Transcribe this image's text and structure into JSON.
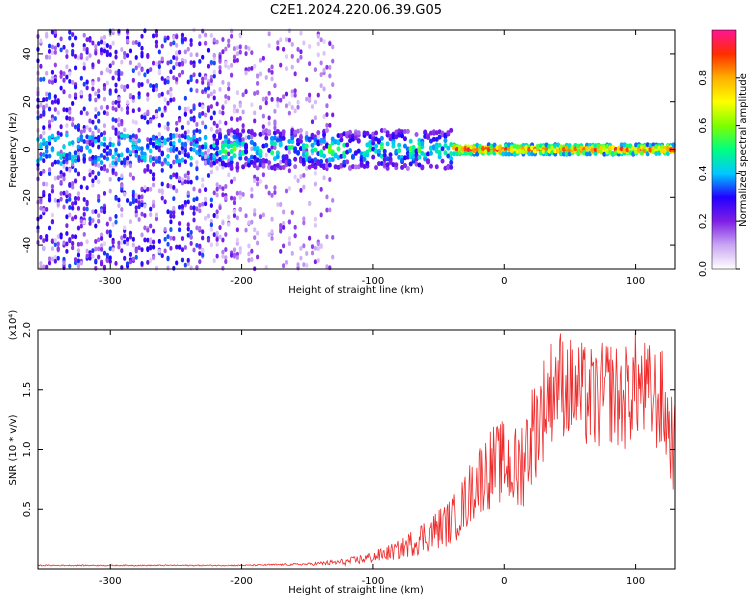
{
  "figure_title": "C2E1.2024.220.06.39.G05",
  "chart_data": [
    {
      "type": "heatmap",
      "title": "C2E1.2024.220.06.39.G05",
      "xlabel": "Height of straight line (km)",
      "ylabel": "Frequency (Hz)",
      "xlim": [
        -355,
        130
      ],
      "ylim": [
        -50,
        50
      ],
      "xticks": [
        -300,
        -200,
        -100,
        0,
        100
      ],
      "xtick_labels": [
        "-300",
        "-200",
        "-100",
        "0",
        "100"
      ],
      "yticks": [
        -40,
        -20,
        0,
        20,
        40
      ],
      "ytick_labels": [
        "-40",
        "-20",
        "0",
        "20",
        "40"
      ],
      "colorbar": {
        "label": "Normalized spectral amplitude",
        "range": [
          0,
          1
        ],
        "ticks": [
          0.0,
          0.2,
          0.4,
          0.6,
          0.8
        ],
        "tick_labels": [
          "0.0",
          "0.2",
          "0.4",
          "0.6",
          "0.8"
        ],
        "colors": [
          "#ffffff",
          "#c9a6f2",
          "#7f1fe6",
          "#2200ff",
          "#00c8ff",
          "#00ff80",
          "#7dff00",
          "#ffff00",
          "#ffb000",
          "#ff2d00",
          "#ff1493"
        ]
      },
      "description_bands": [
        {
          "x_range": [
            -355,
            -130
          ],
          "freq_spread": 50,
          "level": 0.25
        },
        {
          "x_range": [
            -220,
            -40
          ],
          "center_freq": 0,
          "freq_spread": 8,
          "level": 0.45
        },
        {
          "x_range": [
            -40,
            130
          ],
          "center_freq": 0,
          "freq_spread": 2,
          "level": 0.95
        }
      ]
    },
    {
      "type": "line",
      "xlabel": "Height of straight line (km)",
      "ylabel": "SNR (10 * v/v)",
      "y_multiplier_label": "(x10⁴)",
      "xlim": [
        -355,
        130
      ],
      "ylim": [
        0,
        2.0
      ],
      "xticks": [
        -300,
        -200,
        -100,
        0,
        100
      ],
      "xtick_labels": [
        "-300",
        "-200",
        "-100",
        "0",
        "100"
      ],
      "yticks": [
        0.5,
        1.0,
        1.5,
        2.0
      ],
      "ytick_labels": [
        "0.5",
        "1.0",
        "1.5",
        "2.0"
      ],
      "line_color": "#ee2a2a",
      "series": [
        {
          "name": "SNR",
          "x": [
            -355,
            -300,
            -250,
            -200,
            -150,
            -120,
            -100,
            -80,
            -60,
            -40,
            -30,
            -20,
            -10,
            0,
            10,
            20,
            30,
            40,
            50,
            60,
            70,
            80,
            90,
            100,
            110,
            120,
            130
          ],
          "y": [
            0.03,
            0.03,
            0.03,
            0.03,
            0.04,
            0.06,
            0.1,
            0.16,
            0.28,
            0.4,
            0.55,
            0.75,
            0.85,
            0.9,
            0.8,
            1.1,
            1.35,
            1.6,
            1.5,
            1.45,
            1.4,
            1.5,
            1.4,
            1.55,
            1.45,
            1.4,
            1.0
          ],
          "fluctuation": [
            0.005,
            0.005,
            0.005,
            0.005,
            0.01,
            0.03,
            0.05,
            0.08,
            0.15,
            0.2,
            0.25,
            0.3,
            0.35,
            0.35,
            0.4,
            0.45,
            0.45,
            0.45,
            0.45,
            0.45,
            0.45,
            0.45,
            0.45,
            0.45,
            0.45,
            0.45,
            0.4
          ]
        }
      ]
    }
  ]
}
